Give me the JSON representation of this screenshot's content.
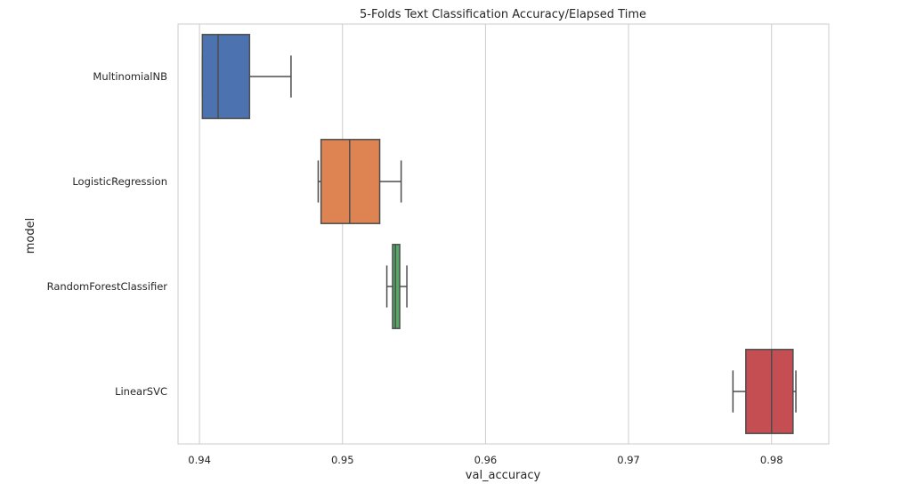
{
  "chart_data": {
    "type": "boxplot",
    "orientation": "horizontal",
    "title": "5-Folds Text Classification Accuracy/Elapsed Time",
    "xlabel": "val_accuracy",
    "ylabel": "model",
    "xlim": [
      0.9385,
      0.984
    ],
    "xticks": [
      0.94,
      0.95,
      0.96,
      0.97,
      0.98
    ],
    "xtick_labels": [
      "0.94",
      "0.95",
      "0.96",
      "0.97",
      "0.98"
    ],
    "grid": "vertical",
    "categories": [
      "MultinomialNB",
      "LogisticRegression",
      "RandomForestClassifier",
      "LinearSVC"
    ],
    "boxes": [
      {
        "category": "MultinomialNB",
        "whisker_low": 0.9402,
        "q1": 0.9402,
        "median": 0.9413,
        "q3": 0.9435,
        "whisker_high": 0.9464,
        "color": "#4c72b0"
      },
      {
        "category": "LogisticRegression",
        "whisker_low": 0.9483,
        "q1": 0.9485,
        "median": 0.9505,
        "q3": 0.9526,
        "whisker_high": 0.9541,
        "color": "#dd8452"
      },
      {
        "category": "RandomForestClassifier",
        "whisker_low": 0.9531,
        "q1": 0.9535,
        "median": 0.9537,
        "q3": 0.954,
        "whisker_high": 0.9545,
        "color": "#55a868"
      },
      {
        "category": "LinearSVC",
        "whisker_low": 0.9773,
        "q1": 0.9782,
        "median": 0.98,
        "q3": 0.9815,
        "whisker_high": 0.9817,
        "color": "#c44e52"
      }
    ]
  }
}
